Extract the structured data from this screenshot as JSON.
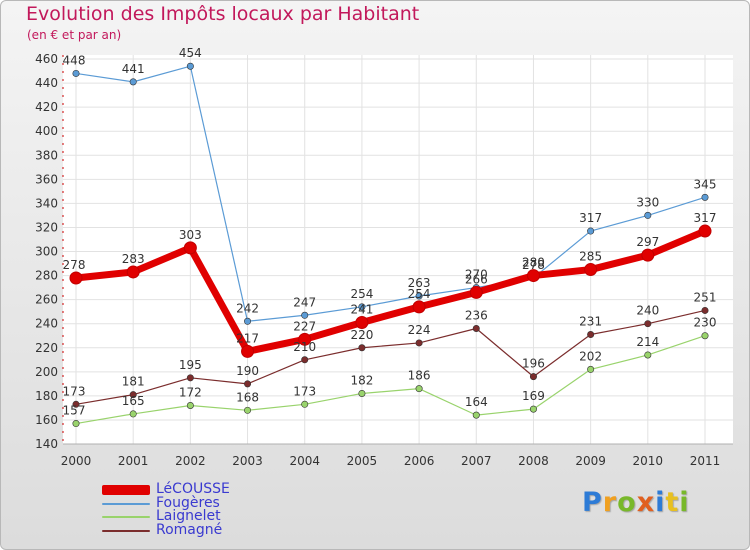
{
  "header": {
    "title": "Evolution des Impôts locaux par Habitant",
    "subtitle": "(en € et par an)"
  },
  "logo": {
    "letters": [
      "P",
      "r",
      "o",
      "x",
      "i",
      "t",
      "i"
    ],
    "colors": [
      "#2d7bd6",
      "#f0a020",
      "#78b82a",
      "#e06020",
      "#2d7bd6",
      "#e8c020",
      "#78b82a"
    ]
  },
  "chart_data": {
    "type": "line",
    "title": "Evolution des Impôts locaux par Habitant",
    "subtitle": "(en € et par an)",
    "xlabel": "",
    "ylabel": "",
    "x": [
      "2000",
      "2001",
      "2002",
      "2003",
      "2004",
      "2005",
      "2006",
      "2007",
      "2008",
      "2009",
      "2010",
      "2011"
    ],
    "ylim": [
      140,
      460
    ],
    "yticks": [
      140,
      160,
      180,
      200,
      220,
      240,
      260,
      280,
      300,
      320,
      340,
      360,
      380,
      400,
      420,
      440,
      460
    ],
    "grid": true,
    "legend_position": "bottom-left",
    "series": [
      {
        "name": "Fougères",
        "color": "#5b9bd5",
        "values": [
          448,
          441,
          454,
          242,
          247,
          254,
          263,
          270,
          278,
          317,
          330,
          345
        ]
      },
      {
        "name": "Laignelet",
        "color": "#99d36c",
        "values": [
          157,
          165,
          172,
          168,
          173,
          182,
          186,
          164,
          169,
          202,
          214,
          230
        ]
      },
      {
        "name": "Romagné",
        "color": "#7b2d2d",
        "values": [
          173,
          181,
          195,
          190,
          210,
          220,
          224,
          236,
          196,
          231,
          240,
          251
        ]
      },
      {
        "name": "LéCOUSSE",
        "color": "#e00000",
        "values": [
          278,
          283,
          303,
          217,
          227,
          241,
          254,
          266,
          280,
          285,
          297,
          317
        ]
      }
    ],
    "legend_order": [
      "LéCOUSSE",
      "Fougères",
      "Laignelet",
      "Romagné"
    ]
  }
}
